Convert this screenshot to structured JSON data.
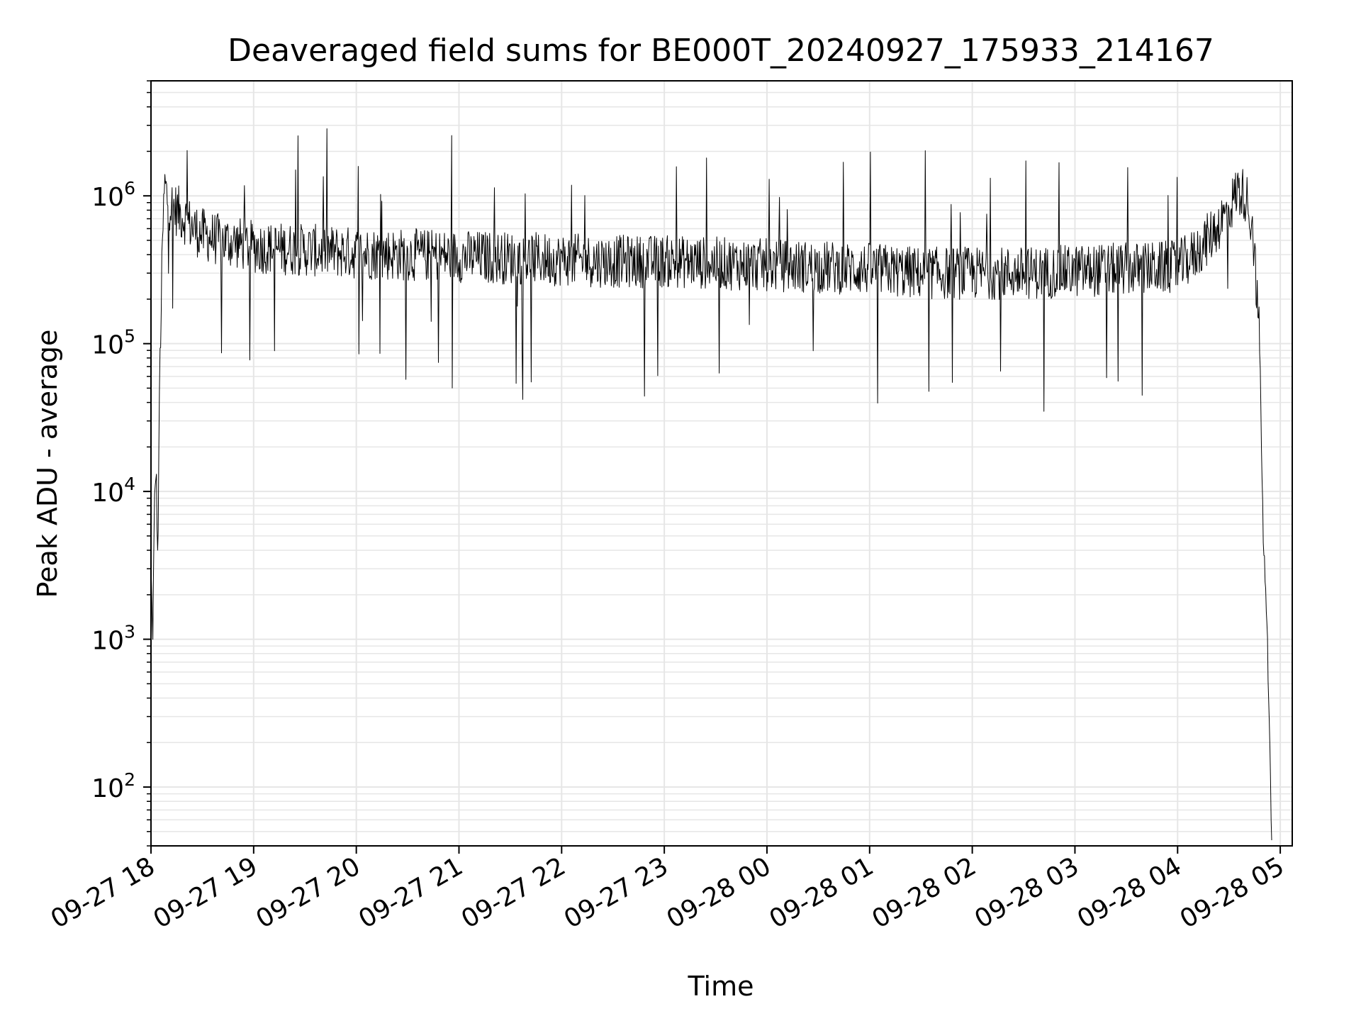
{
  "chart_data": {
    "type": "line",
    "title": "Deaveraged field sums for BE000T_20240927_175933_214167",
    "xlabel": "Time",
    "ylabel": "Peak ADU - average",
    "yscale": "log",
    "xlim": [
      "2024-09-27 18:00",
      "2024-09-28 05:07"
    ],
    "ylim": [
      40,
      6000000
    ],
    "grid": true,
    "line_color": "#000000",
    "grid_color": "#e6e6e6",
    "x_ticks": [
      {
        "value": "2024-09-27 18:00",
        "label": "09-27 18"
      },
      {
        "value": "2024-09-27 19:00",
        "label": "09-27 19"
      },
      {
        "value": "2024-09-27 20:00",
        "label": "09-27 20"
      },
      {
        "value": "2024-09-27 21:00",
        "label": "09-27 21"
      },
      {
        "value": "2024-09-27 22:00",
        "label": "09-27 22"
      },
      {
        "value": "2024-09-27 23:00",
        "label": "09-27 23"
      },
      {
        "value": "2024-09-28 00:00",
        "label": "09-28 00"
      },
      {
        "value": "2024-09-28 01:00",
        "label": "09-28 01"
      },
      {
        "value": "2024-09-28 02:00",
        "label": "09-28 02"
      },
      {
        "value": "2024-09-28 03:00",
        "label": "09-28 03"
      },
      {
        "value": "2024-09-28 04:00",
        "label": "09-28 04"
      },
      {
        "value": "2024-09-28 05:00",
        "label": "09-28 05"
      }
    ],
    "y_ticks": [
      {
        "value": 100,
        "base": "10",
        "exp": "2"
      },
      {
        "value": 1000,
        "base": "10",
        "exp": "3"
      },
      {
        "value": 10000,
        "base": "10",
        "exp": "4"
      },
      {
        "value": 100000,
        "base": "10",
        "exp": "5"
      },
      {
        "value": 1000000,
        "base": "10",
        "exp": "6"
      }
    ],
    "series": [
      {
        "x": [
          "2024-09-27 18:00",
          "2024-09-27 18:01",
          "2024-09-27 18:02",
          "2024-09-27 18:03",
          "2024-09-27 18:04",
          "2024-09-27 18:05",
          "2024-09-27 18:07",
          "2024-09-27 18:08",
          "2024-09-27 18:10",
          "2024-09-27 18:15",
          "2024-09-27 18:20",
          "2024-09-27 18:25",
          "2024-09-27 18:30",
          "2024-09-27 18:40",
          "2024-09-27 18:50",
          "2024-09-27 19:00",
          "2024-09-27 19:15",
          "2024-09-27 19:30",
          "2024-09-27 19:45",
          "2024-09-27 20:00",
          "2024-09-27 20:30",
          "2024-09-27 21:00",
          "2024-09-27 21:30",
          "2024-09-27 22:00",
          "2024-09-27 22:30",
          "2024-09-27 23:00",
          "2024-09-27 23:30",
          "2024-09-28 00:00",
          "2024-09-28 00:30",
          "2024-09-28 01:00",
          "2024-09-28 01:30",
          "2024-09-28 02:00",
          "2024-09-28 02:30",
          "2024-09-28 03:00",
          "2024-09-28 03:30",
          "2024-09-28 04:00",
          "2024-09-28 04:10",
          "2024-09-28 04:20",
          "2024-09-28 04:30",
          "2024-09-28 04:35",
          "2024-09-28 04:40",
          "2024-09-28 04:44",
          "2024-09-28 04:48",
          "2024-09-28 04:50",
          "2024-09-28 04:52",
          "2024-09-28 04:54",
          "2024-09-28 04:55"
        ],
        "y": [
          3000,
          1000,
          8000,
          15000,
          3000,
          60000,
          600000,
          1200000,
          900000,
          800000,
          700000,
          600000,
          550000,
          500000,
          480000,
          450000,
          440000,
          430000,
          420000,
          410000,
          400000,
          390000,
          380000,
          370000,
          360000,
          360000,
          350000,
          340000,
          330000,
          320000,
          300000,
          300000,
          300000,
          310000,
          320000,
          330000,
          400000,
          550000,
          800000,
          1100000,
          1000000,
          600000,
          100000,
          5000,
          1500,
          200,
          40
        ]
      }
    ]
  }
}
